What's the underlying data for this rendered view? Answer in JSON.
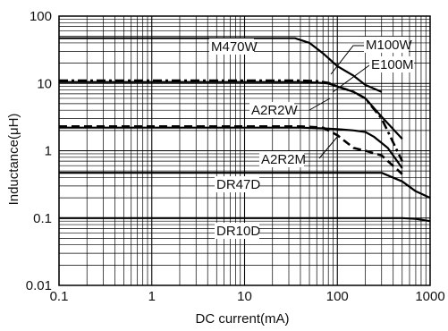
{
  "chart_data": {
    "type": "line",
    "xlabel": "DC current(mA)",
    "ylabel": "Inductance(μH)",
    "xscale": "log",
    "yscale": "log",
    "xlim": [
      0.1,
      1000
    ],
    "ylim": [
      0.01,
      100
    ],
    "grid": true,
    "x_ticks": [
      {
        "value": 0.1,
        "label": "0.1"
      },
      {
        "value": 1,
        "label": "1"
      },
      {
        "value": 10,
        "label": "10"
      },
      {
        "value": 100,
        "label": "100"
      },
      {
        "value": 1000,
        "label": "1000"
      }
    ],
    "y_ticks": [
      {
        "value": 100,
        "label": "100"
      },
      {
        "value": 10,
        "label": "10"
      },
      {
        "value": 1,
        "label": "1"
      },
      {
        "value": 0.1,
        "label": "0.1"
      },
      {
        "value": 0.01,
        "label": "0.01"
      }
    ],
    "series": [
      {
        "name": "M470W",
        "style": "solid",
        "x": [
          0.1,
          10,
          35,
          50,
          70,
          100,
          150,
          200,
          300
        ],
        "y": [
          47,
          47,
          47,
          40,
          28,
          18,
          13,
          9.5,
          7.5
        ]
      },
      {
        "name": "M100W",
        "style": "solid",
        "x": [
          0.1,
          10,
          40,
          60,
          80,
          100,
          150,
          200,
          300,
          500
        ],
        "y": [
          10.5,
          10.5,
          10.5,
          10.3,
          10,
          9,
          7.5,
          6,
          3.2,
          1.5
        ]
      },
      {
        "name": "E100M",
        "style": "dashdot",
        "x": [
          0.1,
          10,
          40,
          60,
          80,
          100,
          150,
          200,
          300,
          500
        ],
        "y": [
          11,
          11,
          11,
          10.8,
          10.2,
          9,
          7.5,
          6,
          3,
          0.7
        ]
      },
      {
        "name": "A2R2W",
        "style": "solid",
        "x": [
          0.1,
          10,
          40,
          70,
          100,
          150,
          200,
          250,
          350,
          500
        ],
        "y": [
          2.2,
          2.2,
          2.2,
          2.15,
          2.1,
          2,
          1.9,
          1.6,
          1.1,
          0.55
        ]
      },
      {
        "name": "A2R2M",
        "style": "dashed",
        "x": [
          0.1,
          10,
          40,
          70,
          100,
          150,
          200,
          300,
          500
        ],
        "y": [
          2.3,
          2.3,
          2.3,
          2.2,
          1.7,
          1.1,
          1.0,
          0.85,
          0.45
        ]
      },
      {
        "name": "DR47D",
        "style": "solid",
        "x": [
          0.1,
          10,
          100,
          200,
          300,
          500,
          700,
          1000
        ],
        "y": [
          0.47,
          0.47,
          0.47,
          0.47,
          0.47,
          0.35,
          0.25,
          0.2
        ]
      },
      {
        "name": "DR10D",
        "style": "solid",
        "x": [
          0.1,
          10,
          100,
          300,
          500,
          700,
          1000
        ],
        "y": [
          0.1,
          0.1,
          0.1,
          0.1,
          0.1,
          0.097,
          0.09
        ]
      }
    ],
    "annotations": [
      {
        "text": "M470W",
        "series": "M470W"
      },
      {
        "text": "M100W",
        "series": "M100W"
      },
      {
        "text": "E100M",
        "series": "E100M"
      },
      {
        "text": "A2R2W",
        "series": "A2R2W"
      },
      {
        "text": "A2R2M",
        "series": "A2R2M"
      },
      {
        "text": "DR47D",
        "series": "DR47D"
      },
      {
        "text": "DR10D",
        "series": "DR10D"
      }
    ]
  }
}
